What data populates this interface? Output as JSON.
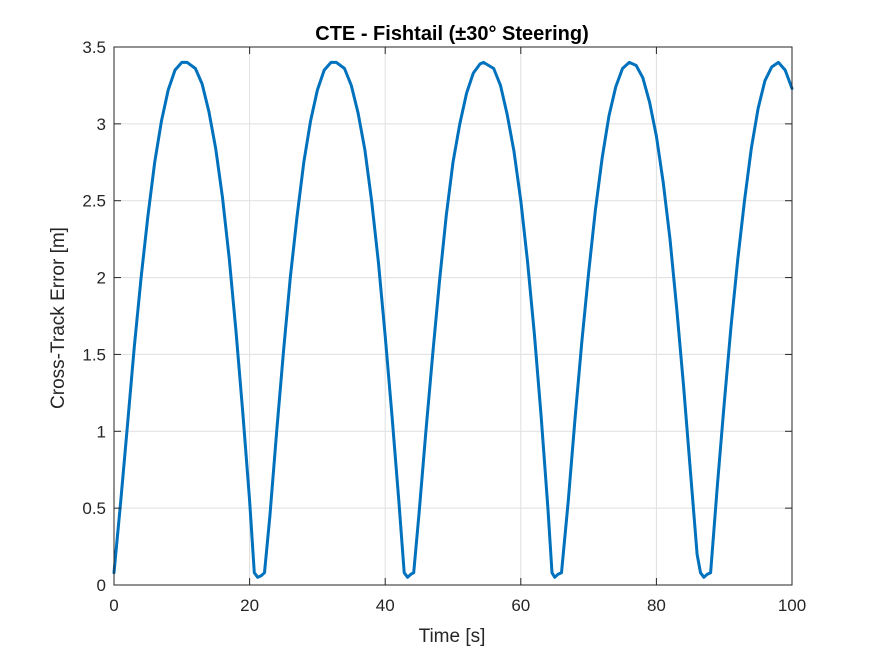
{
  "chart_data": {
    "type": "line",
    "title": "CTE - Fishtail (±30° Steering)",
    "xlabel": "Time [s]",
    "ylabel": "Cross-Track Error [m]",
    "xlim": [
      0,
      100
    ],
    "ylim": [
      0,
      3.5
    ],
    "xticks": [
      0,
      20,
      40,
      60,
      80,
      100
    ],
    "yticks": [
      0,
      0.5,
      1,
      1.5,
      2,
      2.5,
      3,
      3.5
    ],
    "xtick_labels": [
      "0",
      "20",
      "40",
      "60",
      "80",
      "100"
    ],
    "ytick_labels": [
      "0",
      "0.5",
      "1",
      "1.5",
      "2",
      "2.5",
      "3",
      "3.5"
    ],
    "grid": true,
    "series": [
      {
        "color": "#0072bd",
        "x": [
          0,
          1,
          2,
          3,
          4,
          5,
          6,
          7,
          8,
          9,
          10,
          10.8,
          12,
          13,
          14,
          15,
          16,
          17,
          18,
          19,
          20,
          20.7,
          21.2,
          21.7,
          22.2,
          23,
          24,
          25,
          26,
          27,
          28,
          29,
          30,
          31,
          32,
          32.8,
          34,
          35,
          36,
          37,
          38,
          39,
          40,
          41,
          42,
          42.8,
          43.3,
          43.8,
          44.2,
          45,
          46,
          47,
          48,
          49,
          50,
          51,
          52,
          53,
          54,
          54.5,
          56,
          57,
          58,
          59,
          60,
          61,
          62,
          63,
          64,
          64.6,
          65.0,
          65.5,
          66.0,
          67,
          68,
          69,
          70,
          71,
          72,
          73,
          74,
          75,
          76,
          77,
          78,
          79,
          80,
          81,
          82,
          83,
          84,
          85,
          86,
          86.5,
          87.0,
          87.5,
          88.0,
          89,
          90,
          91,
          92,
          93,
          94,
          95,
          96,
          97,
          98,
          99,
          100
        ],
        "y": [
          0.08,
          0.55,
          1.05,
          1.55,
          2.0,
          2.4,
          2.75,
          3.02,
          3.22,
          3.35,
          3.4,
          3.4,
          3.36,
          3.26,
          3.08,
          2.84,
          2.52,
          2.12,
          1.65,
          1.12,
          0.55,
          0.08,
          0.05,
          0.06,
          0.08,
          0.45,
          1.0,
          1.52,
          2.0,
          2.4,
          2.75,
          3.02,
          3.22,
          3.35,
          3.4,
          3.4,
          3.36,
          3.25,
          3.07,
          2.83,
          2.5,
          2.1,
          1.62,
          1.1,
          0.55,
          0.08,
          0.05,
          0.07,
          0.08,
          0.47,
          1.0,
          1.5,
          1.97,
          2.4,
          2.75,
          3.0,
          3.2,
          3.33,
          3.39,
          3.4,
          3.36,
          3.25,
          3.06,
          2.82,
          2.5,
          2.1,
          1.63,
          1.1,
          0.5,
          0.08,
          0.05,
          0.07,
          0.08,
          0.55,
          1.08,
          1.58,
          2.03,
          2.44,
          2.78,
          3.05,
          3.24,
          3.36,
          3.4,
          3.38,
          3.3,
          3.14,
          2.92,
          2.62,
          2.25,
          1.8,
          1.3,
          0.75,
          0.2,
          0.08,
          0.05,
          0.07,
          0.08,
          0.65,
          1.18,
          1.68,
          2.12,
          2.5,
          2.84,
          3.1,
          3.28,
          3.37,
          3.4,
          3.35,
          3.23
        ]
      }
    ]
  }
}
